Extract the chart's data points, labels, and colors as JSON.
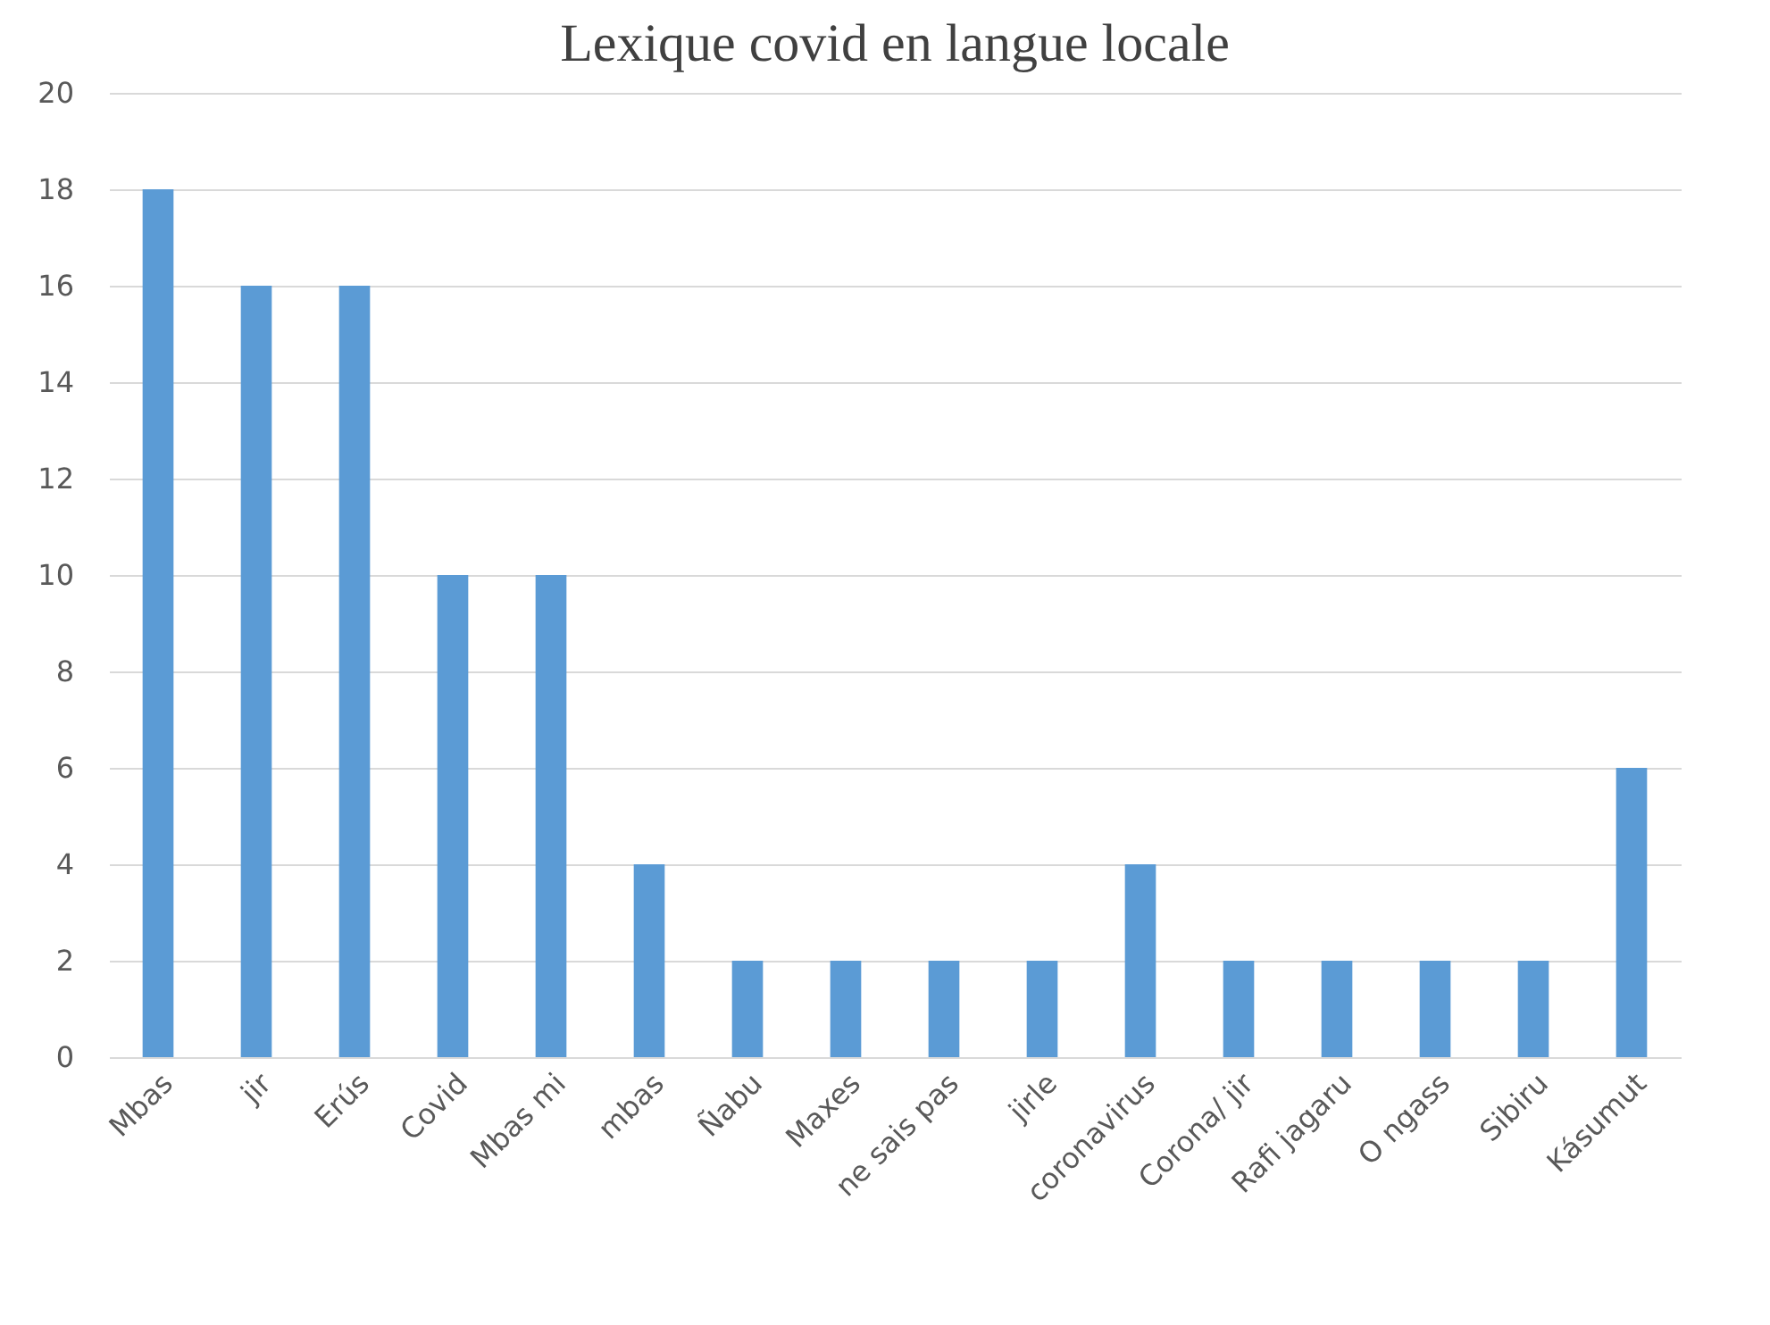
{
  "chart_data": {
    "type": "bar",
    "title": "Lexique covid en langue locale",
    "categories": [
      "Mbas",
      "jir",
      "Erús",
      "Covid",
      "Mbas mi",
      "mbas",
      "Ñabu",
      "Maxes",
      "ne sais pas",
      "jirle",
      "coronavirus",
      "Corona/ jir",
      "Rafi jagaru",
      "O ngass",
      "Sibiru",
      "Kásumut"
    ],
    "values": [
      18,
      16,
      16,
      10,
      10,
      4,
      2,
      2,
      2,
      2,
      4,
      2,
      2,
      2,
      2,
      6
    ],
    "color": "#5b9bd5",
    "ylim": [
      0,
      20
    ],
    "yticks": [
      0,
      2,
      4,
      6,
      8,
      10,
      12,
      14,
      16,
      18,
      20
    ],
    "grid": "y"
  }
}
